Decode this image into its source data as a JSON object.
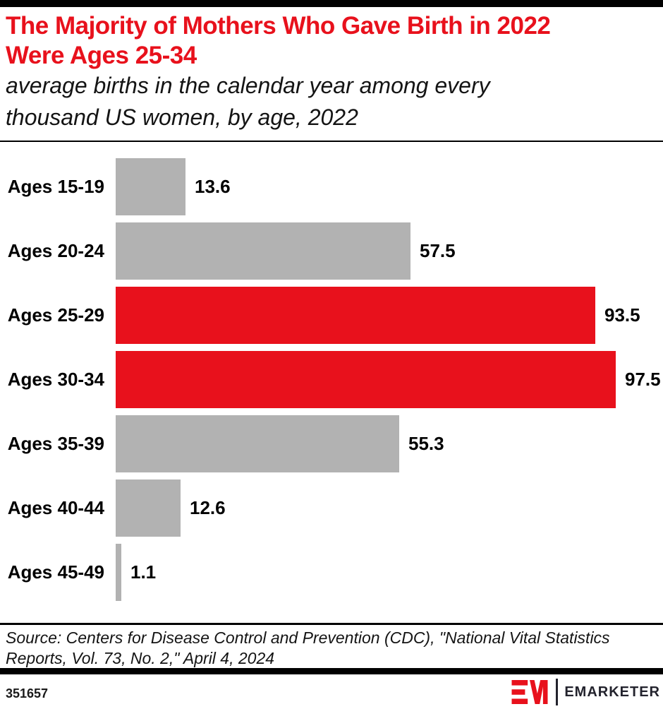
{
  "colors": {
    "accent_red": "#e8111c",
    "bar_gray": "#b2b2b2",
    "text_dark": "#141414",
    "logo_dark": "#23232d"
  },
  "header": {
    "title_lines": [
      "The Majority of Mothers Who Gave Birth in 2022",
      "Were Ages 25-34"
    ],
    "subtitle_lines": [
      "average births in the calendar year among every",
      "thousand US women, by age, 2022"
    ]
  },
  "chart_data": {
    "type": "bar",
    "orientation": "horizontal",
    "title": "The Majority of Mothers Who Gave Birth in 2022 Were Ages 25-34",
    "subtitle": "average births in the calendar year among every thousand US women, by age, 2022",
    "categories": [
      "Ages 15-19",
      "Ages 20-24",
      "Ages 25-29",
      "Ages 30-34",
      "Ages 35-39",
      "Ages 40-44",
      "Ages 45-49"
    ],
    "values": [
      13.6,
      57.5,
      93.5,
      97.5,
      55.3,
      12.6,
      1.1
    ],
    "value_labels": [
      "13.6",
      "57.5",
      "93.5",
      "97.5",
      "55.3",
      "12.6",
      "1.1"
    ],
    "highlight": [
      false,
      false,
      true,
      true,
      false,
      false,
      false
    ],
    "xlim": [
      0,
      100
    ],
    "grid": false,
    "legend": null,
    "value_labels_shown": true
  },
  "source": {
    "lines": [
      "Source: Centers for Disease Control and Prevention (CDC), \"National Vital Statistics",
      "Reports, Vol. 73, No. 2,\" April 4, 2024"
    ]
  },
  "footer": {
    "chart_number": "351657",
    "brand": "EMARKETER"
  }
}
